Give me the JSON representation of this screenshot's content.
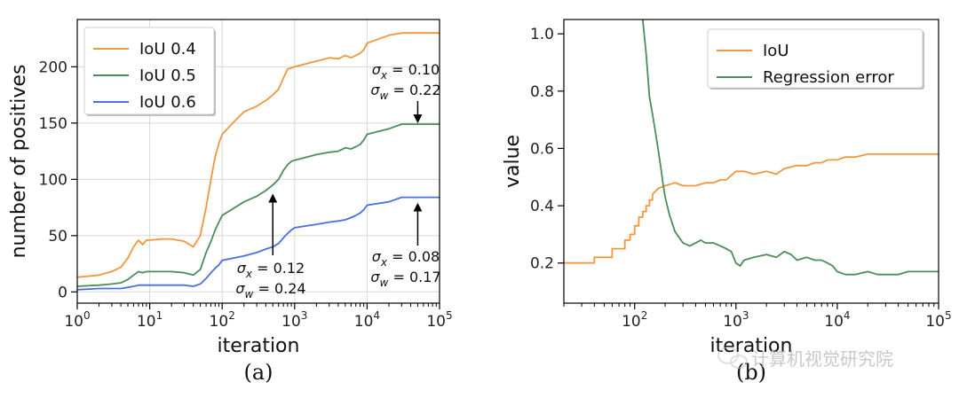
{
  "chart_data": [
    {
      "type": "line",
      "caption": "(a)",
      "xlabel": "iteration",
      "ylabel": "number of positives",
      "xscale": "log",
      "xlim": [
        1,
        100000
      ],
      "ylim": [
        -10,
        242
      ],
      "xticks": [
        1,
        10,
        100,
        1000,
        10000,
        100000
      ],
      "xtick_labels": [
        {
          "base": "10",
          "exp": "0"
        },
        {
          "base": "10",
          "exp": "1"
        },
        {
          "base": "10",
          "exp": "2"
        },
        {
          "base": "10",
          "exp": "3"
        },
        {
          "base": "10",
          "exp": "4"
        },
        {
          "base": "10",
          "exp": "5"
        }
      ],
      "yticks": [
        0,
        50,
        100,
        150,
        200
      ],
      "ytick_labels": [
        "0",
        "50",
        "100",
        "150",
        "200"
      ],
      "grid": true,
      "legend": "top-left",
      "series": [
        {
          "name": "IoU 0.4",
          "color": "#f0963c",
          "x": [
            1,
            2,
            3,
            4,
            5,
            6,
            7,
            8,
            9,
            10,
            15,
            20,
            30,
            40,
            50,
            60,
            70,
            80,
            90,
            100,
            150,
            200,
            300,
            400,
            500,
            600,
            700,
            800,
            900,
            1000,
            2000,
            3000,
            4000,
            5000,
            6000,
            7000,
            8000,
            9000,
            10000,
            20000,
            30000,
            50000,
            70000,
            100000
          ],
          "y": [
            13,
            15,
            18,
            22,
            30,
            40,
            46,
            42,
            46,
            46,
            47,
            47,
            45,
            40,
            50,
            75,
            100,
            120,
            132,
            140,
            152,
            160,
            165,
            170,
            175,
            180,
            190,
            198,
            199,
            200,
            205,
            208,
            207,
            210,
            208,
            210,
            212,
            215,
            221,
            228,
            230,
            230,
            230,
            230
          ]
        },
        {
          "name": "IoU 0.5",
          "color": "#4c8c5a",
          "x": [
            1,
            2,
            3,
            4,
            5,
            6,
            7,
            8,
            9,
            10,
            20,
            30,
            40,
            50,
            60,
            70,
            80,
            90,
            100,
            200,
            300,
            400,
            500,
            600,
            700,
            800,
            900,
            1000,
            2000,
            3000,
            4000,
            5000,
            6000,
            7000,
            8000,
            9000,
            10000,
            20000,
            30000,
            50000,
            70000,
            100000
          ],
          "y": [
            5,
            6,
            7,
            8,
            11,
            15,
            18,
            17,
            18,
            18,
            18,
            17,
            15,
            20,
            35,
            45,
            55,
            62,
            68,
            80,
            85,
            90,
            95,
            100,
            108,
            113,
            116,
            117,
            122,
            124,
            125,
            128,
            127,
            129,
            131,
            135,
            140,
            145,
            149,
            149,
            149,
            149
          ]
        },
        {
          "name": "IoU 0.6",
          "color": "#4a6fe3",
          "x": [
            1,
            2,
            3,
            4,
            5,
            6,
            7,
            8,
            9,
            10,
            20,
            30,
            40,
            50,
            60,
            70,
            80,
            90,
            100,
            200,
            300,
            400,
            500,
            600,
            700,
            800,
            900,
            1000,
            2000,
            3000,
            4000,
            5000,
            6000,
            7000,
            8000,
            9000,
            10000,
            20000,
            30000,
            50000,
            70000,
            100000
          ],
          "y": [
            2,
            3,
            3,
            3,
            4,
            5,
            6,
            6,
            6,
            6,
            6,
            6,
            5,
            7,
            12,
            17,
            21,
            24,
            28,
            32,
            35,
            38,
            40,
            43,
            48,
            52,
            55,
            57,
            60,
            62,
            63,
            64,
            66,
            68,
            70,
            73,
            77,
            80,
            84,
            84,
            84,
            84
          ]
        }
      ],
      "annotations": [
        {
          "sx": "σ",
          "ss": "x",
          "sv": "= 0.10",
          "wx": "σ",
          "ws": "w",
          "wv": "= 0.22",
          "arrow_x": 50000,
          "arrow_y": 149,
          "dir": "down"
        },
        {
          "sx": "σ",
          "ss": "x",
          "sv": "= 0.12",
          "wx": "σ",
          "ws": "w",
          "wv": "= 0.24",
          "arrow_x": 500,
          "arrow_y": 88,
          "dir": "up"
        },
        {
          "sx": "σ",
          "ss": "x",
          "sv": "= 0.08",
          "wx": "σ",
          "ws": "w",
          "wv": "= 0.17",
          "arrow_x": 50000,
          "arrow_y": 80,
          "dir": "up"
        }
      ]
    },
    {
      "type": "line",
      "caption": "(b)",
      "xlabel": "iteration",
      "ylabel": "value",
      "xscale": "log",
      "xlim": [
        20,
        100000
      ],
      "ylim": [
        0.06,
        1.05
      ],
      "xticks": [
        100,
        1000,
        10000,
        100000
      ],
      "xtick_labels": [
        {
          "base": "10",
          "exp": "2"
        },
        {
          "base": "10",
          "exp": "3"
        },
        {
          "base": "10",
          "exp": "4"
        },
        {
          "base": "10",
          "exp": "5"
        }
      ],
      "yticks": [
        0.2,
        0.4,
        0.6,
        0.8,
        1.0
      ],
      "ytick_labels": [
        "0.2",
        "0.4",
        "0.6",
        "0.8",
        "1.0"
      ],
      "grid": false,
      "legend": "top-right",
      "series": [
        {
          "name": "IoU",
          "color": "#f0963c",
          "x": [
            20,
            40,
            40,
            60,
            60,
            80,
            80,
            90,
            90,
            100,
            100,
            110,
            110,
            120,
            120,
            130,
            130,
            140,
            140,
            150,
            150,
            170,
            200,
            250,
            300,
            400,
            500,
            600,
            700,
            800,
            1000,
            1200,
            1500,
            2000,
            2500,
            3000,
            4000,
            5000,
            6000,
            7000,
            8000,
            10000,
            12000,
            15000,
            20000,
            30000,
            50000,
            70000,
            100000
          ],
          "y": [
            0.2,
            0.2,
            0.22,
            0.22,
            0.25,
            0.25,
            0.28,
            0.28,
            0.3,
            0.3,
            0.33,
            0.33,
            0.36,
            0.36,
            0.38,
            0.38,
            0.4,
            0.4,
            0.42,
            0.42,
            0.44,
            0.46,
            0.47,
            0.48,
            0.47,
            0.47,
            0.48,
            0.48,
            0.49,
            0.49,
            0.52,
            0.52,
            0.51,
            0.52,
            0.51,
            0.53,
            0.54,
            0.54,
            0.55,
            0.55,
            0.56,
            0.56,
            0.57,
            0.57,
            0.58,
            0.58,
            0.58,
            0.58,
            0.58
          ]
        },
        {
          "name": "Regression error",
          "color": "#4c8c5a",
          "x": [
            120,
            130,
            140,
            150,
            160,
            170,
            180,
            190,
            200,
            220,
            250,
            300,
            350,
            400,
            450,
            500,
            600,
            700,
            800,
            900,
            1000,
            1100,
            1200,
            1500,
            2000,
            2500,
            3000,
            3500,
            4000,
            5000,
            6000,
            7000,
            8000,
            9000,
            10000,
            12000,
            15000,
            20000,
            25000,
            30000,
            40000,
            50000,
            70000,
            100000
          ],
          "y": [
            1.05,
            0.93,
            0.78,
            0.72,
            0.66,
            0.6,
            0.54,
            0.48,
            0.43,
            0.37,
            0.31,
            0.27,
            0.26,
            0.27,
            0.28,
            0.27,
            0.27,
            0.26,
            0.25,
            0.24,
            0.2,
            0.19,
            0.21,
            0.22,
            0.23,
            0.22,
            0.24,
            0.23,
            0.21,
            0.22,
            0.21,
            0.21,
            0.2,
            0.19,
            0.17,
            0.16,
            0.16,
            0.17,
            0.16,
            0.16,
            0.16,
            0.17,
            0.17,
            0.17
          ]
        }
      ]
    }
  ],
  "watermark": {
    "text": "计算机视觉研究院",
    "icon": "wechat-icon"
  }
}
